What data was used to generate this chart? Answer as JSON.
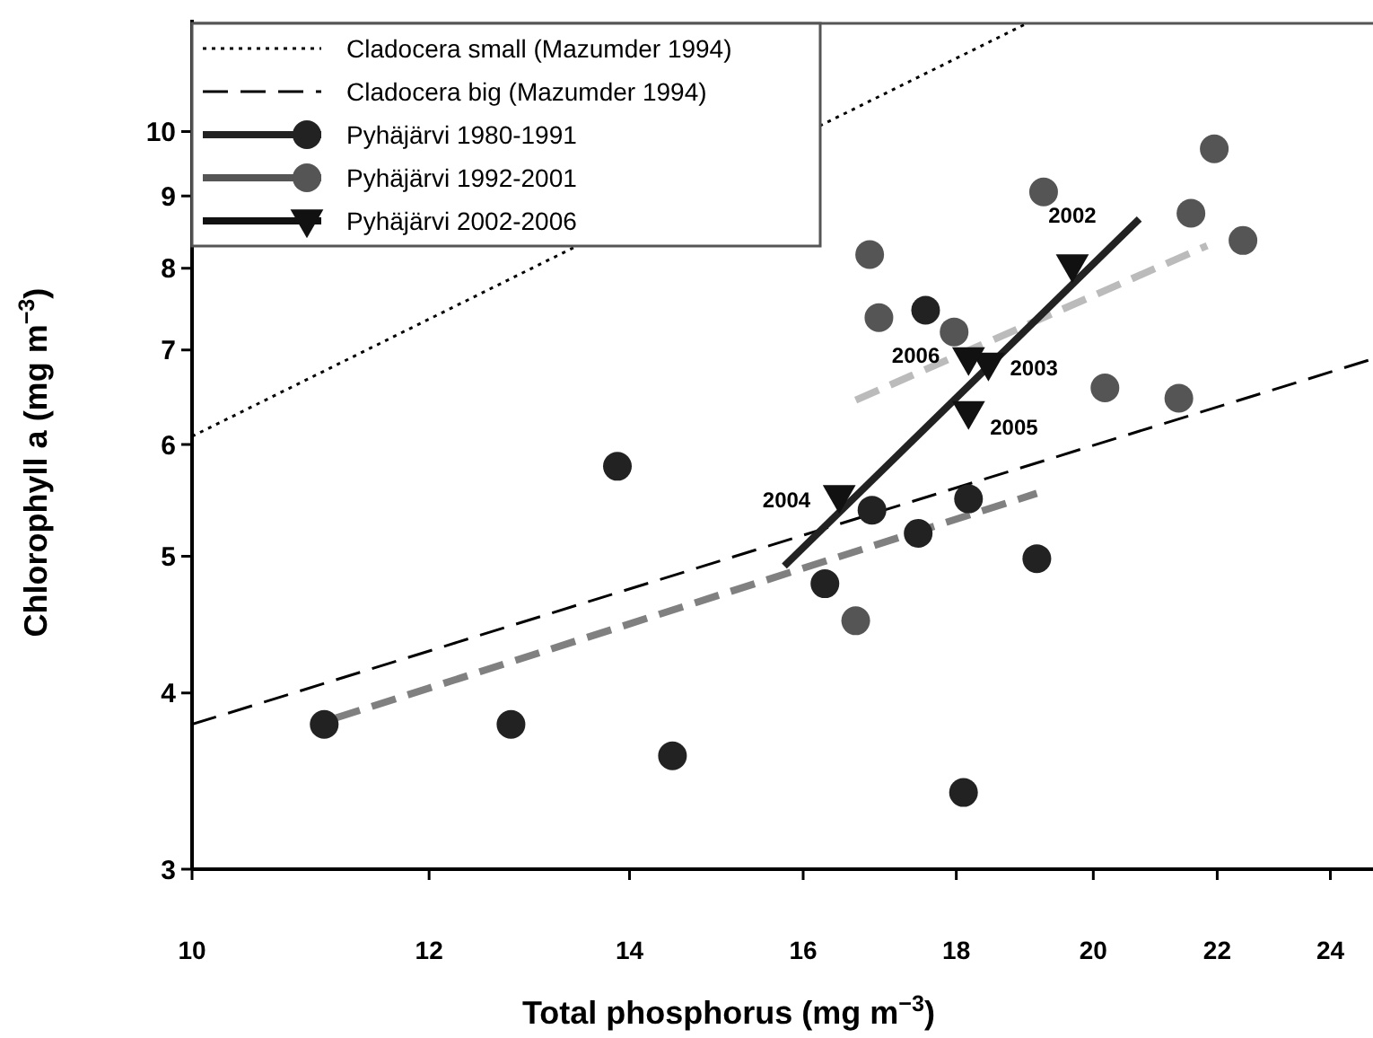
{
  "chart_data": {
    "type": "scatter",
    "xlabel": "Total phosphorus (mg m$^{−3}$)",
    "ylabel": "Chlorophyll a (mg m$^{−3}$)",
    "log": "xy",
    "xlim": [
      10,
      24.8
    ],
    "ylim": [
      3,
      12
    ],
    "xticks": [
      10,
      12,
      14,
      16,
      18,
      20,
      22,
      24
    ],
    "yticks": [
      3,
      4,
      5,
      6,
      7,
      8,
      9,
      10
    ],
    "grid": false,
    "legend": "top left",
    "series": [
      {
        "name": "Cladocera small (Mazumder 1994)",
        "type": "line",
        "color": "#000000",
        "line_style": "dotted",
        "x": [
          10,
          18.96
        ],
        "values": [
          6.08,
          11.9
        ]
      },
      {
        "name": "Cladocera big (Mazumder 1994)",
        "type": "line",
        "color": "#000000",
        "line_style": "dashed",
        "x": [
          10,
          24.8
        ],
        "values": [
          3.8,
          6.9
        ]
      },
      {
        "name": "Pyhäjärvi 1980-1991",
        "color": "#222222",
        "marker": "circle",
        "x": [
          11.07,
          12.78,
          14.47,
          13.87,
          16.27,
          16.87,
          17.48,
          17.58,
          18.17,
          18.1,
          19.15
        ],
        "values": [
          3.8,
          3.8,
          3.61,
          5.79,
          4.78,
          5.39,
          5.19,
          7.47,
          5.49,
          3.4,
          4.98
        ]
      },
      {
        "name": "Pyhäjärvi 1992-2001",
        "color": "#555555",
        "marker": "circle",
        "x": [
          21.95,
          19.25,
          21.56,
          22.44,
          16.84,
          16.96,
          17.97,
          20.18,
          21.36,
          16.66
        ],
        "values": [
          9.72,
          9.06,
          8.75,
          8.37,
          8.18,
          7.38,
          7.21,
          6.58,
          6.47,
          4.5
        ]
      },
      {
        "name": "Pyhäjärvi 2002-2006",
        "color": "#111111",
        "marker": "triangle",
        "x": [
          19.68,
          18.45,
          16.45,
          18.17,
          18.17
        ],
        "values": [
          8.03,
          6.84,
          5.51,
          6.32,
          6.9
        ]
      },
      {
        "type": "line",
        "color": "#808080",
        "line_style": "dashed",
        "x": [
          11.17,
          19.15
        ],
        "values": [
          3.84,
          5.54
        ]
      },
      {
        "type": "line",
        "color": "#bbbbbb",
        "line_style": "dashed",
        "x": [
          16.66,
          21.83
        ],
        "values": [
          6.45,
          8.3
        ]
      },
      {
        "type": "line",
        "color": "#222222",
        "line_style": "solid",
        "x": [
          15.77,
          20.72
        ],
        "values": [
          4.92,
          8.67
        ]
      }
    ],
    "annotations": [
      {
        "text": "2002",
        "x": 19.68,
        "y": 8.03
      },
      {
        "text": "2003",
        "x": 18.45,
        "y": 6.84
      },
      {
        "text": "2004",
        "x": 16.45,
        "y": 5.51
      },
      {
        "text": "2005",
        "x": 18.17,
        "y": 6.32
      },
      {
        "text": "2006",
        "x": 18.17,
        "y": 6.9
      }
    ]
  }
}
